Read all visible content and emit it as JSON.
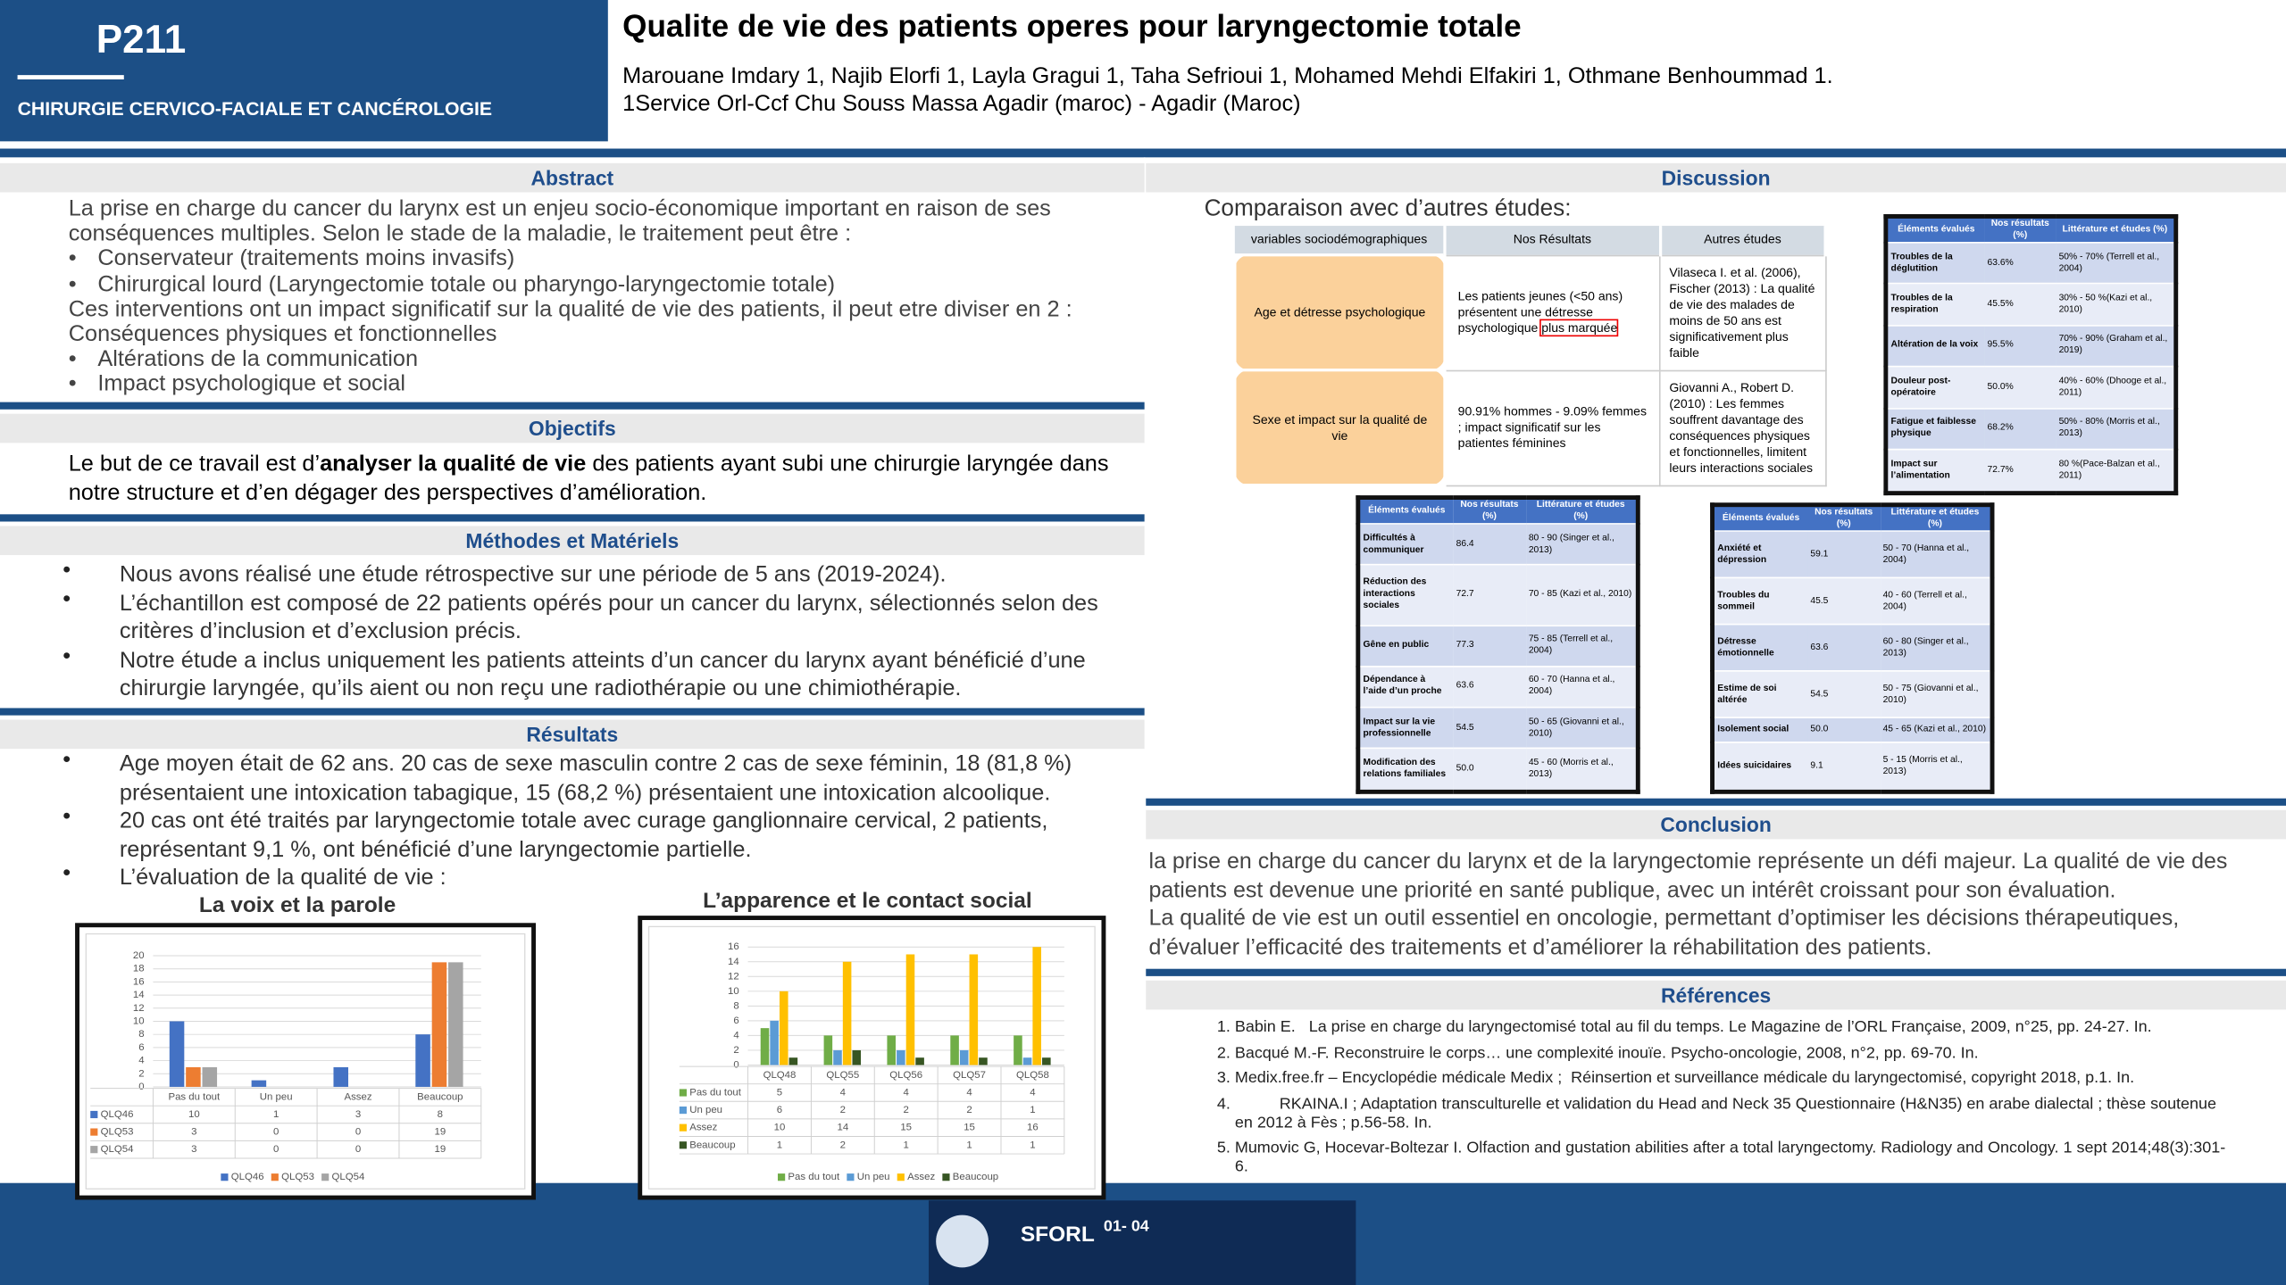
{
  "header": {
    "code": "P211",
    "department": "CHIRURGIE CERVICO-FACIALE ET CANCÉROLOGIE",
    "title": "Qualite de vie des patients operes pour laryngectomie totale",
    "authors": "Marouane Imdary 1, Najib Elorfi 1, Layla Gragui 1, Taha Sefrioui 1, Mohamed Mehdi Elfakiri 1, Othmane Benhoummad 1.",
    "affiliation": "1Service Orl-Ccf Chu Souss Massa Agadir (maroc) - Agadir (Maroc)"
  },
  "abstract": {
    "heading": "Abstract",
    "items": [
      {
        "text": "La prise en charge du cancer du larynx est un enjeu socio-économique important en raison de ses conséquences multiples. Selon le stade de la maladie, le traitement peut être :",
        "bullet": false
      },
      {
        "text": "Conservateur (traitements moins invasifs)",
        "bullet": true
      },
      {
        "text": "Chirurgical lourd (Laryngectomie totale ou pharyngo-laryngectomie totale)",
        "bullet": true
      },
      {
        "text": "Ces interventions ont un impact significatif sur la qualité de vie des patients, il peut etre diviser en 2 :",
        "bullet": false
      },
      {
        "text": "Conséquences physiques et fonctionnelles",
        "bullet": false
      },
      {
        "text": "Altérations de la communication",
        "bullet": true
      },
      {
        "text": "Impact psychologique et social",
        "bullet": true
      }
    ]
  },
  "objectifs": {
    "heading": "Objectifs",
    "parts": [
      {
        "text": "Le but de ce travail est d’",
        "bold": false
      },
      {
        "text": "analyser la qualité de vie",
        "bold": true
      },
      {
        "text": " des patients ayant subi une chirurgie laryngée dans notre structure et d’en dégager des perspectives d’amélioration.",
        "bold": false
      }
    ]
  },
  "methodes": {
    "heading": "Méthodes et Matériels",
    "items": [
      "Nous avons réalisé une étude rétrospective sur une période de 5 ans (2019-2024).",
      "L’échantillon est composé de 22 patients opérés pour un cancer du larynx, sélectionnés selon des critères d’inclusion et d’exclusion précis.",
      "Notre étude a inclus uniquement les patients atteints d’un cancer du larynx ayant bénéficié d’une chirurgie laryngée, qu’ils aient ou non reçu une radiothérapie ou une chimiothérapie."
    ]
  },
  "resultats": {
    "heading": "Résultats",
    "items": [
      "Age moyen était de 62 ans. 20 cas de sexe masculin contre 2 cas de sexe féminin, 18 (81,8 %) présentaient une intoxication tabagique, 15 (68,2 %) présentaient une intoxication alcoolique.",
      "20 cas ont été traités par laryngectomie totale avec curage ganglionnaire cervical, 2 patients, représentant 9,1 %, ont bénéficié d’une laryngectomie partielle.",
      "L’évaluation de la qualité de vie :"
    ],
    "charts": [
      {
        "type": "bar",
        "title": "La voix et la parole",
        "categories": [
          "Pas du tout",
          "Un peu",
          "Assez",
          "Beaucoup"
        ],
        "series": [
          {
            "name": "QLQ46",
            "color": "#4472c4",
            "values": [
              10,
              1,
              3,
              8
            ]
          },
          {
            "name": "QLQ53",
            "color": "#ed7d31",
            "values": [
              3,
              0,
              0,
              19
            ]
          },
          {
            "name": "QLQ54",
            "color": "#a5a5a5",
            "values": [
              3,
              0,
              0,
              19
            ]
          }
        ],
        "ylim": [
          0,
          20
        ],
        "yticks": [
          0,
          2,
          4,
          6,
          8,
          10,
          12,
          14,
          16,
          18,
          20
        ],
        "grid": true
      },
      {
        "type": "bar",
        "title": "L’apparence et le contact social",
        "categories": [
          "QLQ48",
          "QLQ55",
          "QLQ56",
          "QLQ57",
          "QLQ58"
        ],
        "series": [
          {
            "name": "Pas du tout",
            "color": "#70ad47",
            "values": [
              5,
              4,
              4,
              4,
              4
            ]
          },
          {
            "name": "Un peu",
            "color": "#5b9bd5",
            "values": [
              6,
              2,
              2,
              2,
              1
            ]
          },
          {
            "name": "Assez",
            "color": "#ffc000",
            "values": [
              10,
              14,
              15,
              15,
              16
            ]
          },
          {
            "name": "Beaucoup",
            "color": "#375623",
            "values": [
              1,
              2,
              1,
              1,
              1
            ]
          }
        ],
        "ylim": [
          0,
          16
        ],
        "yticks": [
          0,
          2,
          4,
          6,
          8,
          10,
          12,
          14,
          16
        ],
        "grid": true
      }
    ]
  },
  "discussion": {
    "heading": "Discussion",
    "intro": "Comparaison avec d’autres études:",
    "comparison": {
      "headers": [
        "variables sociodémographiques",
        "Nos Résultats",
        "Autres études"
      ],
      "rows": [
        {
          "variable": "Age et détresse psychologique",
          "result": [
            {
              "text": "Les patients jeunes (<50 ans) présentent une détresse psychologique ",
              "boxed": false
            },
            {
              "text": "plus marquée",
              "boxed": true
            }
          ],
          "others": "Vilaseca I. et al. (2006), Fischer (2013) : La qualité de vie des malades de moins de 50 ans est significativement plus faible"
        },
        {
          "variable": "Sexe et impact sur la qualité de vie",
          "result": [
            {
              "text": "90.91% hommes - 9.09% femmes ; impact significatif sur les patientes féminines",
              "boxed": false
            }
          ],
          "others": "Giovanni A., Robert D. (2010) : Les femmes souffrent davantage des conséquences physiques et fonctionnelles, limitent leurs interactions sociales"
        }
      ]
    },
    "tables": [
      {
        "headers": [
          "Éléments évalués",
          "Nos résultats (%)",
          "Littérature et études (%)"
        ],
        "rows": [
          [
            "Troubles de la déglutition",
            "63.6%",
            "50% - 70% (Terrell et al., 2004)"
          ],
          [
            "Troubles de la respiration",
            "45.5%",
            "30% - 50 %(Kazi et al., 2010)"
          ],
          [
            "Altération de la voix",
            "95.5%",
            "70% - 90% (Graham et al., 2019)"
          ],
          [
            "Douleur post-opératoire",
            "50.0%",
            "40% - 60% (Dhooge et al., 2011)"
          ],
          [
            "Fatigue et faiblesse physique",
            "68.2%",
            "50% - 80% (Morris et al., 2013)"
          ],
          [
            "Impact sur l’alimentation",
            "72.7%",
            "80 %(Pace-Balzan et al., 2011)"
          ]
        ]
      },
      {
        "headers": [
          "Éléments évalués",
          "Nos résultats (%)",
          "Littérature et études (%)"
        ],
        "rows": [
          [
            "Difficultés à communiquer",
            "86.4",
            "80 - 90 (Singer et al., 2013)"
          ],
          [
            "Réduction des interactions sociales",
            "72.7",
            "70 - 85 (Kazi et al., 2010)"
          ],
          [
            "Gêne en public",
            "77.3",
            "75 - 85 (Terrell et al., 2004)"
          ],
          [
            "Dépendance à l’aide d’un proche",
            "63.6",
            "60 - 70 (Hanna et al., 2004)"
          ],
          [
            "Impact sur la vie professionnelle",
            "54.5",
            "50 - 65 (Giovanni et al., 2010)"
          ],
          [
            "Modification des relations familiales",
            "50.0",
            "45 - 60 (Morris et al., 2013)"
          ]
        ]
      },
      {
        "headers": [
          "Éléments évalués",
          "Nos résultats (%)",
          "Littérature et études (%)"
        ],
        "rows": [
          [
            "Anxiété et dépression",
            "59.1",
            "50 - 70 (Hanna et al., 2004)"
          ],
          [
            "Troubles du sommeil",
            "45.5",
            "40 - 60 (Terrell et al., 2004)"
          ],
          [
            "Détresse émotionnelle",
            "63.6",
            "60 - 80 (Singer et al., 2013)"
          ],
          [
            "Estime de soi altérée",
            "54.5",
            "50 - 75 (Giovanni et al., 2010)"
          ],
          [
            "Isolement social",
            "50.0",
            "45 - 65 (Kazi et al., 2010)"
          ],
          [
            "Idées suicidaires",
            "9.1",
            "5 - 15 (Morris et al., 2013)"
          ]
        ]
      }
    ]
  },
  "conclusion": {
    "heading": "Conclusion",
    "paragraphs": [
      "la prise en charge du cancer du larynx et de la laryngectomie représente un défi majeur. La qualité de vie des patients est devenue une priorité en santé publique, avec un intérêt croissant pour son évaluation.",
      "La qualité de vie est un outil essentiel en oncologie, permettant d’optimiser les décisions thérapeutiques, d’évaluer l’efficacité des traitements et d’améliorer la réhabilitation des patients."
    ]
  },
  "references": {
    "heading": "Références",
    "items": [
      "Babin E.   La prise en charge du laryngectomisé total au fil du temps. Le Magazine de l’ORL Française, 2009, n°25, pp. 24-27. In.",
      "Bacqué M.-F. Reconstruire le corps… une complexité inouïe. Psycho-oncologie, 2008, n°2, pp. 69-70. In.",
      "Medix.free.fr – Encyclopédie médicale Medix ;  Réinsertion et surveillance médicale du laryngectomisé, copyright 2018, p.1. In.",
      "          RKAINA.I ; Adaptation transculturelle et validation du Head and Neck 35 Questionnaire (H&N35) en arabe dialectal ; thèse soutenue en 2012 à Fès ; p.56-58. In.",
      "Mumovic G, Hocevar-Boltezar I. Olfaction and gustation abilities after a total laryngectomy. Radiology and Oncology. 1 sept 2014;48(3):301-6."
    ]
  },
  "footer": {
    "logo": "SFORL",
    "dates": "01- 04"
  }
}
